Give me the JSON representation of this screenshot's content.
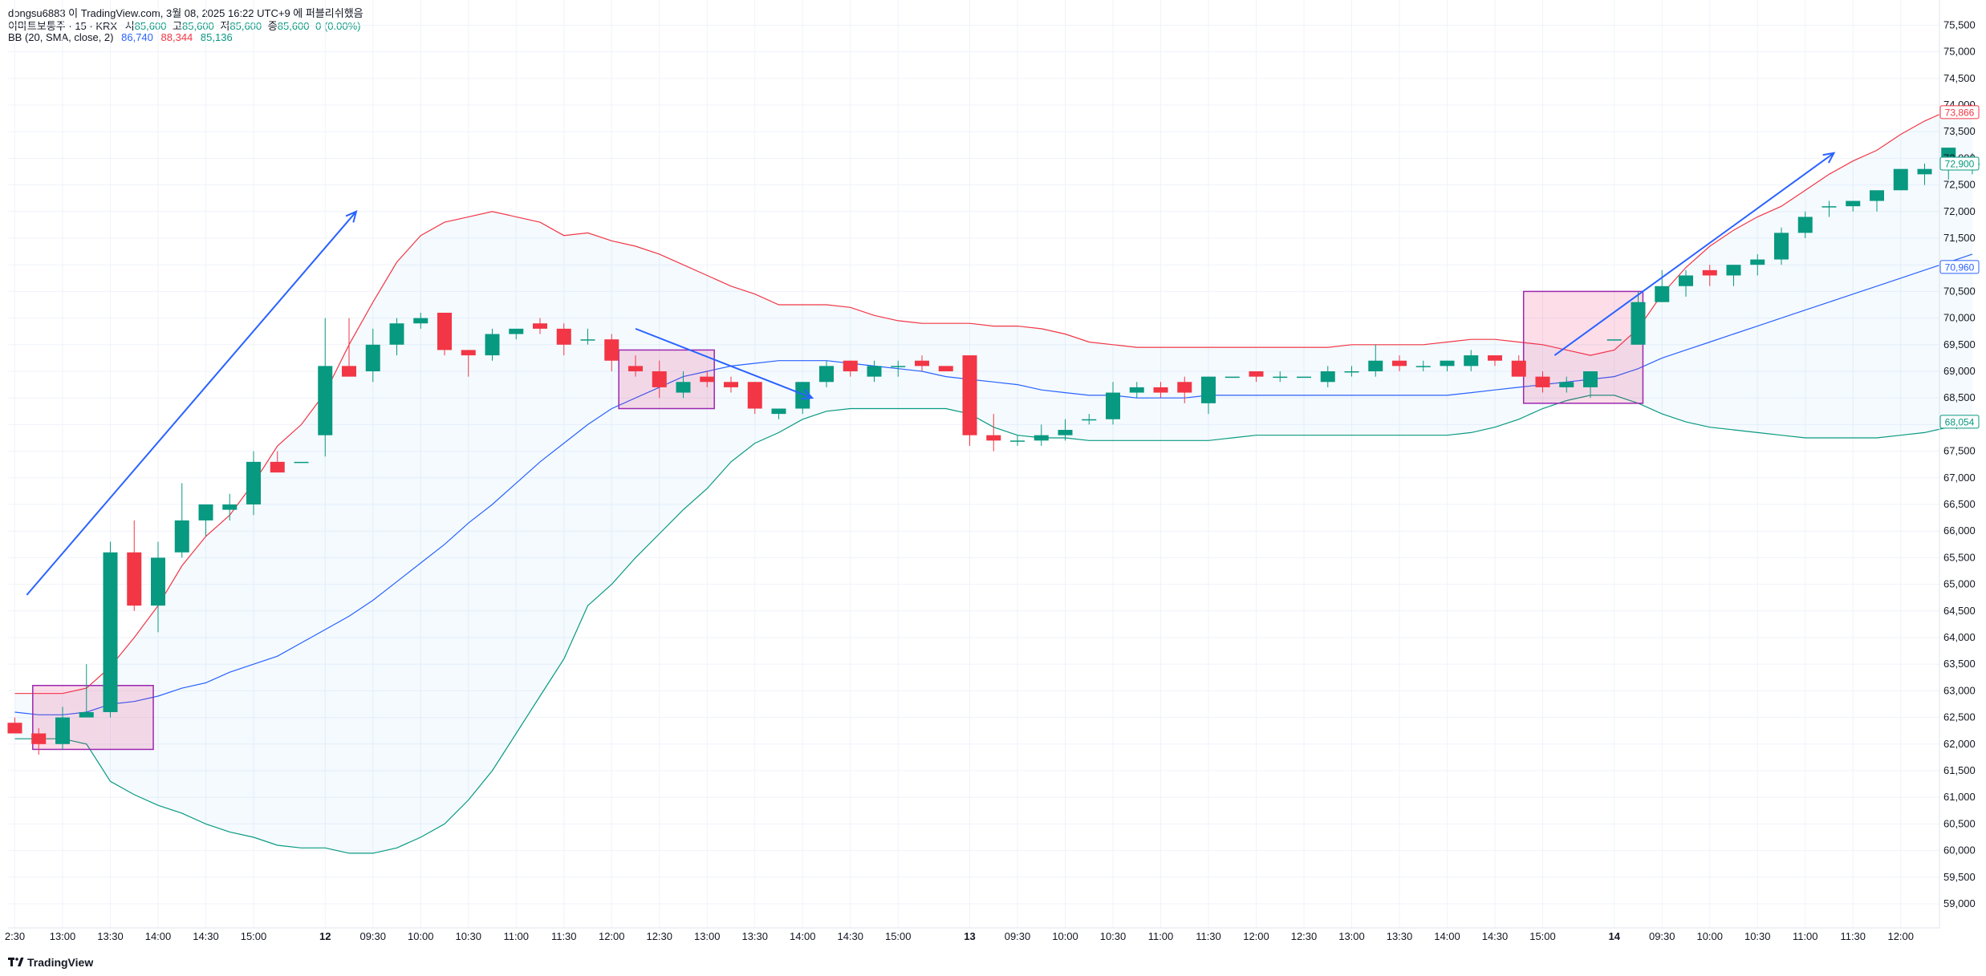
{
  "header": {
    "attribution": "dongsu6883 이 TradingView.com, 3월 08, 2025 16:22 UTC+9 에 퍼블리쉬했음",
    "symbol": "이마트보통주 · 15 · KRX",
    "ohlc": [
      {
        "k": "시",
        "v": "85,600"
      },
      {
        "k": "고",
        "v": "85,600"
      },
      {
        "k": "저",
        "v": "85,600"
      },
      {
        "k": "종",
        "v": "85,600"
      }
    ],
    "change": "0 (0.00%)",
    "bb_label": "BB (20, SMA, close, 2)",
    "bb_values": [
      "86,740",
      "88,344",
      "85,136"
    ]
  },
  "footer": {
    "brand": "TradingView"
  },
  "colors": {
    "up": "#089981",
    "down": "#f23645",
    "basis": "#2962ff",
    "upper": "#f23645",
    "lower": "#089981",
    "fill": "#2196f3",
    "arrow": "#2962ff",
    "box": "#9c27b0"
  },
  "chart_data": {
    "type": "candlestick",
    "ylim": [
      58700,
      75600
    ],
    "y_ticks": [
      59000,
      59500,
      60000,
      60500,
      61000,
      61500,
      62000,
      62500,
      63000,
      63500,
      64000,
      64500,
      65000,
      65500,
      66000,
      66500,
      67000,
      67500,
      68000,
      68500,
      69000,
      69500,
      70000,
      70500,
      71000,
      71500,
      72000,
      72500,
      73000,
      73500,
      74000,
      74500,
      75000,
      75500
    ],
    "x_ticks": [
      {
        "i": 0,
        "label": "2:30"
      },
      {
        "i": 2,
        "label": "13:00"
      },
      {
        "i": 4,
        "label": "13:30"
      },
      {
        "i": 6,
        "label": "14:00"
      },
      {
        "i": 8,
        "label": "14:30"
      },
      {
        "i": 10,
        "label": "15:00"
      },
      {
        "i": 13,
        "label": "12",
        "bold": true
      },
      {
        "i": 15,
        "label": "09:30"
      },
      {
        "i": 17,
        "label": "10:00"
      },
      {
        "i": 19,
        "label": "10:30"
      },
      {
        "i": 21,
        "label": "11:00"
      },
      {
        "i": 23,
        "label": "11:30"
      },
      {
        "i": 25,
        "label": "12:00"
      },
      {
        "i": 27,
        "label": "12:30"
      },
      {
        "i": 29,
        "label": "13:00"
      },
      {
        "i": 31,
        "label": "13:30"
      },
      {
        "i": 33,
        "label": "14:00"
      },
      {
        "i": 35,
        "label": "14:30"
      },
      {
        "i": 37,
        "label": "15:00"
      },
      {
        "i": 40,
        "label": "13",
        "bold": true
      },
      {
        "i": 42,
        "label": "09:30"
      },
      {
        "i": 44,
        "label": "10:00"
      },
      {
        "i": 46,
        "label": "10:30"
      },
      {
        "i": 48,
        "label": "11:00"
      },
      {
        "i": 50,
        "label": "11:30"
      },
      {
        "i": 52,
        "label": "12:00"
      },
      {
        "i": 54,
        "label": "12:30"
      },
      {
        "i": 56,
        "label": "13:00"
      },
      {
        "i": 58,
        "label": "13:30"
      },
      {
        "i": 60,
        "label": "14:00"
      },
      {
        "i": 62,
        "label": "14:30"
      },
      {
        "i": 64,
        "label": "15:00"
      },
      {
        "i": 67,
        "label": "14",
        "bold": true
      },
      {
        "i": 69,
        "label": "09:30"
      },
      {
        "i": 71,
        "label": "10:00"
      },
      {
        "i": 73,
        "label": "10:30"
      },
      {
        "i": 75,
        "label": "11:00"
      },
      {
        "i": 77,
        "label": "11:30"
      },
      {
        "i": 79,
        "label": "12:00"
      }
    ],
    "candles": [
      [
        62400,
        62500,
        62200,
        62200
      ],
      [
        62200,
        62300,
        61800,
        62000
      ],
      [
        62000,
        62700,
        61900,
        62500
      ],
      [
        62500,
        63500,
        62500,
        62600
      ],
      [
        62600,
        65800,
        62500,
        65600
      ],
      [
        65600,
        66200,
        64500,
        64600
      ],
      [
        64600,
        65800,
        64100,
        65500
      ],
      [
        65600,
        66900,
        65500,
        66200
      ],
      [
        66200,
        66500,
        65900,
        66500
      ],
      [
        66400,
        66700,
        66200,
        66500
      ],
      [
        66500,
        67500,
        66300,
        67300
      ],
      [
        67300,
        67500,
        67100,
        67100
      ],
      [
        67300,
        67300,
        67300,
        67300
      ],
      [
        67800,
        70000,
        67400,
        69100
      ],
      [
        69100,
        70000,
        68900,
        68900
      ],
      [
        69000,
        69800,
        68800,
        69500
      ],
      [
        69500,
        70000,
        69300,
        69900
      ],
      [
        69900,
        70100,
        69800,
        70000
      ],
      [
        70100,
        70100,
        69300,
        69400
      ],
      [
        69400,
        69400,
        68900,
        69300
      ],
      [
        69300,
        69800,
        69200,
        69700
      ],
      [
        69700,
        69800,
        69600,
        69800
      ],
      [
        69900,
        70000,
        69700,
        69800
      ],
      [
        69800,
        69900,
        69300,
        69500
      ],
      [
        69600,
        69800,
        69500,
        69600
      ],
      [
        69600,
        69700,
        69000,
        69200
      ],
      [
        69100,
        69300,
        68900,
        69000
      ],
      [
        69000,
        69200,
        68500,
        68700
      ],
      [
        68600,
        69000,
        68500,
        68800
      ],
      [
        68900,
        69000,
        68700,
        68800
      ],
      [
        68800,
        68900,
        68600,
        68700
      ],
      [
        68800,
        68800,
        68200,
        68300
      ],
      [
        68200,
        68300,
        68100,
        68300
      ],
      [
        68300,
        68800,
        68200,
        68800
      ],
      [
        68800,
        69200,
        68700,
        69100
      ],
      [
        69200,
        69200,
        68900,
        69000
      ],
      [
        68900,
        69200,
        68800,
        69100
      ],
      [
        69100,
        69200,
        68900,
        69100
      ],
      [
        69200,
        69300,
        69000,
        69100
      ],
      [
        69100,
        69100,
        69000,
        69000
      ],
      [
        69300,
        69300,
        67600,
        67800
      ],
      [
        67800,
        68200,
        67500,
        67700
      ],
      [
        67700,
        67800,
        67600,
        67700
      ],
      [
        67700,
        68000,
        67600,
        67800
      ],
      [
        67800,
        68100,
        67700,
        67900
      ],
      [
        68100,
        68200,
        68000,
        68100
      ],
      [
        68100,
        68800,
        68000,
        68600
      ],
      [
        68600,
        68800,
        68500,
        68700
      ],
      [
        68700,
        68800,
        68500,
        68600
      ],
      [
        68800,
        68900,
        68400,
        68600
      ],
      [
        68400,
        68900,
        68200,
        68900
      ],
      [
        68900,
        68900,
        68900,
        68900
      ],
      [
        69000,
        69000,
        68800,
        68900
      ],
      [
        68900,
        69000,
        68800,
        68900
      ],
      [
        68900,
        68900,
        68900,
        68900
      ],
      [
        68800,
        69100,
        68700,
        69000
      ],
      [
        69000,
        69100,
        68900,
        69000
      ],
      [
        69000,
        69500,
        68900,
        69200
      ],
      [
        69200,
        69300,
        69000,
        69100
      ],
      [
        69100,
        69200,
        69000,
        69100
      ],
      [
        69100,
        69200,
        69000,
        69200
      ],
      [
        69100,
        69400,
        69000,
        69300
      ],
      [
        69300,
        69300,
        69100,
        69200
      ],
      [
        69200,
        69300,
        68900,
        68900
      ],
      [
        68900,
        69000,
        68600,
        68700
      ],
      [
        68700,
        68900,
        68600,
        68800
      ],
      [
        68700,
        69000,
        68500,
        69000
      ],
      [
        69600,
        69600,
        69600,
        69600
      ],
      [
        69500,
        70500,
        69500,
        70300
      ],
      [
        70300,
        70900,
        70300,
        70600
      ],
      [
        70600,
        70900,
        70400,
        70800
      ],
      [
        70900,
        71000,
        70600,
        70800
      ],
      [
        70800,
        71000,
        70600,
        71000
      ],
      [
        71000,
        71200,
        70800,
        71100
      ],
      [
        71100,
        71700,
        71000,
        71600
      ],
      [
        71600,
        72000,
        71500,
        71900
      ],
      [
        72100,
        72200,
        71900,
        72100
      ],
      [
        72100,
        72200,
        72000,
        72200
      ],
      [
        72200,
        72300,
        72000,
        72400
      ],
      [
        72400,
        72700,
        72400,
        72800
      ],
      [
        72700,
        72900,
        72500,
        72800
      ],
      [
        72800,
        73200,
        72600,
        73200
      ],
      [
        72900,
        73100,
        72700,
        72900
      ]
    ],
    "bb_upper": [
      62950,
      62950,
      62950,
      63050,
      63450,
      64000,
      64600,
      65350,
      65900,
      66300,
      66900,
      67600,
      68000,
      68600,
      69500,
      70300,
      71050,
      71550,
      71800,
      71900,
      72000,
      71900,
      71800,
      71550,
      71600,
      71450,
      71350,
      71200,
      71000,
      70800,
      70600,
      70450,
      70250,
      70250,
      70250,
      70200,
      70050,
      69950,
      69900,
      69900,
      69900,
      69850,
      69850,
      69800,
      69700,
      69550,
      69500,
      69450,
      69450,
      69450,
      69450,
      69450,
      69450,
      69450,
      69450,
      69450,
      69500,
      69500,
      69500,
      69500,
      69550,
      69600,
      69600,
      69550,
      69500,
      69400,
      69300,
      69400,
      69800,
      70450,
      70950,
      71350,
      71650,
      71900,
      72100,
      72400,
      72700,
      72950,
      73150,
      73450,
      73700,
      73900,
      74000
    ],
    "bb_basis": [
      62600,
      62550,
      62550,
      62600,
      62750,
      62800,
      62900,
      63050,
      63150,
      63350,
      63500,
      63650,
      63900,
      64150,
      64400,
      64700,
      65050,
      65400,
      65750,
      66150,
      66500,
      66900,
      67300,
      67650,
      68000,
      68300,
      68500,
      68700,
      68900,
      69000,
      69100,
      69150,
      69200,
      69200,
      69200,
      69150,
      69100,
      69050,
      69000,
      68900,
      68850,
      68800,
      68750,
      68650,
      68600,
      68550,
      68550,
      68500,
      68500,
      68500,
      68550,
      68550,
      68550,
      68550,
      68550,
      68550,
      68550,
      68550,
      68550,
      68550,
      68550,
      68600,
      68650,
      68700,
      68750,
      68800,
      68850,
      68900,
      69050,
      69250,
      69400,
      69550,
      69700,
      69850,
      70000,
      70150,
      70300,
      70450,
      70600,
      70750,
      70900,
      71050,
      71200
    ],
    "bb_lower": [
      62100,
      62100,
      62100,
      62000,
      61300,
      61050,
      60850,
      60700,
      60500,
      60350,
      60250,
      60100,
      60050,
      60050,
      59950,
      59950,
      60050,
      60250,
      60500,
      60950,
      61500,
      62200,
      62900,
      63600,
      64600,
      65000,
      65500,
      65950,
      66400,
      66800,
      67300,
      67650,
      67850,
      68100,
      68250,
      68300,
      68300,
      68300,
      68300,
      68300,
      68200,
      67950,
      67800,
      67750,
      67750,
      67700,
      67700,
      67700,
      67700,
      67700,
      67700,
      67750,
      67800,
      67800,
      67800,
      67800,
      67800,
      67800,
      67800,
      67800,
      67800,
      67850,
      67950,
      68100,
      68300,
      68450,
      68550,
      68550,
      68400,
      68200,
      68050,
      67950,
      67900,
      67850,
      67800,
      67750,
      67750,
      67750,
      67750,
      67800,
      67850,
      67950,
      68050
    ],
    "annotations": {
      "arrows": [
        {
          "from": [
            0.5,
            64800
          ],
          "to": [
            14.3,
            72000
          ]
        },
        {
          "from": [
            26,
            69800
          ],
          "to": [
            33.4,
            68500
          ]
        },
        {
          "from": [
            64.5,
            69300
          ],
          "to": [
            76.2,
            73100
          ]
        }
      ],
      "boxes": [
        {
          "x0": 0.75,
          "x1": 5.8,
          "y0": 61900,
          "y1": 63100
        },
        {
          "x0": 25.3,
          "x1": 29.3,
          "y0": 68300,
          "y1": 69400
        },
        {
          "x0": 63.2,
          "x1": 68.2,
          "y0": 68400,
          "y1": 70500
        }
      ]
    },
    "price_badges": [
      {
        "value": "73,866",
        "num": 73866,
        "color": "#f23645"
      },
      {
        "value": "72,900",
        "num": 72900,
        "color": "#089981"
      },
      {
        "value": "70,960",
        "num": 70960,
        "color": "#2962ff"
      },
      {
        "value": "68,054",
        "num": 68054,
        "color": "#089981"
      }
    ]
  }
}
